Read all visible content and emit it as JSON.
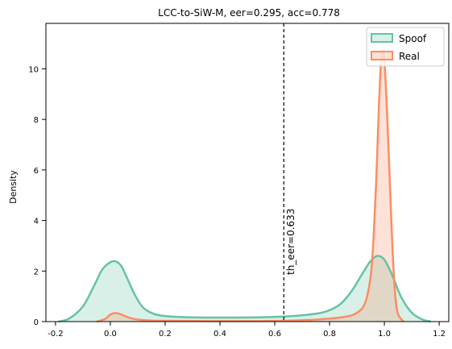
{
  "chart_data": {
    "type": "area",
    "title": "LCC-to-SiW-M, eer=0.295, acc=0.778",
    "xlabel": "",
    "ylabel": "Density",
    "xlim": [
      -0.235,
      1.235
    ],
    "ylim": [
      0,
      11.8
    ],
    "xticks": [
      -0.2,
      0.0,
      0.2,
      0.4,
      0.6,
      0.8,
      1.0,
      1.2
    ],
    "xtick_labels": [
      "-0.2",
      "0.0",
      "0.2",
      "0.4",
      "0.6",
      "0.8",
      "1.0",
      "1.2"
    ],
    "yticks": [
      0,
      2,
      4,
      6,
      8,
      10
    ],
    "ytick_labels": [
      "0",
      "2",
      "4",
      "6",
      "8",
      "10"
    ],
    "grid": false,
    "legend_position": "top-right",
    "series": [
      {
        "name": "Spoof",
        "color": "#66c2a5",
        "x": [
          -0.19,
          -0.15,
          -0.1,
          -0.06,
          -0.03,
          0.0,
          0.02,
          0.04,
          0.06,
          0.09,
          0.12,
          0.16,
          0.2,
          0.26,
          0.35,
          0.45,
          0.55,
          0.633,
          0.7,
          0.76,
          0.8,
          0.84,
          0.88,
          0.92,
          0.95,
          0.975,
          1.0,
          1.03,
          1.06,
          1.1,
          1.14,
          1.17
        ],
        "y": [
          0.0,
          0.12,
          0.6,
          1.4,
          2.05,
          2.35,
          2.38,
          2.2,
          1.75,
          1.05,
          0.55,
          0.3,
          0.22,
          0.18,
          0.16,
          0.16,
          0.17,
          0.2,
          0.25,
          0.33,
          0.45,
          0.7,
          1.2,
          1.9,
          2.4,
          2.6,
          2.45,
          1.8,
          1.0,
          0.35,
          0.08,
          0.0
        ]
      },
      {
        "name": "Real",
        "color": "#fc8d62",
        "x": [
          -0.05,
          -0.02,
          0.0,
          0.02,
          0.04,
          0.07,
          0.1,
          0.15,
          0.2,
          0.35,
          0.5,
          0.633,
          0.75,
          0.85,
          0.9,
          0.93,
          0.95,
          0.96,
          0.97,
          0.98,
          0.99,
          1.0,
          1.01,
          1.02,
          1.03,
          1.04,
          1.05,
          1.07
        ],
        "y": [
          0.0,
          0.1,
          0.28,
          0.34,
          0.28,
          0.15,
          0.08,
          0.04,
          0.03,
          0.02,
          0.02,
          0.03,
          0.08,
          0.18,
          0.35,
          0.75,
          1.8,
          3.2,
          5.5,
          8.5,
          10.6,
          10.3,
          8.2,
          5.5,
          2.8,
          1.0,
          0.3,
          0.0
        ]
      }
    ],
    "vline": {
      "x": 0.633,
      "label": "th_eer=0.633",
      "color": "#000000",
      "style": "dashed"
    }
  }
}
